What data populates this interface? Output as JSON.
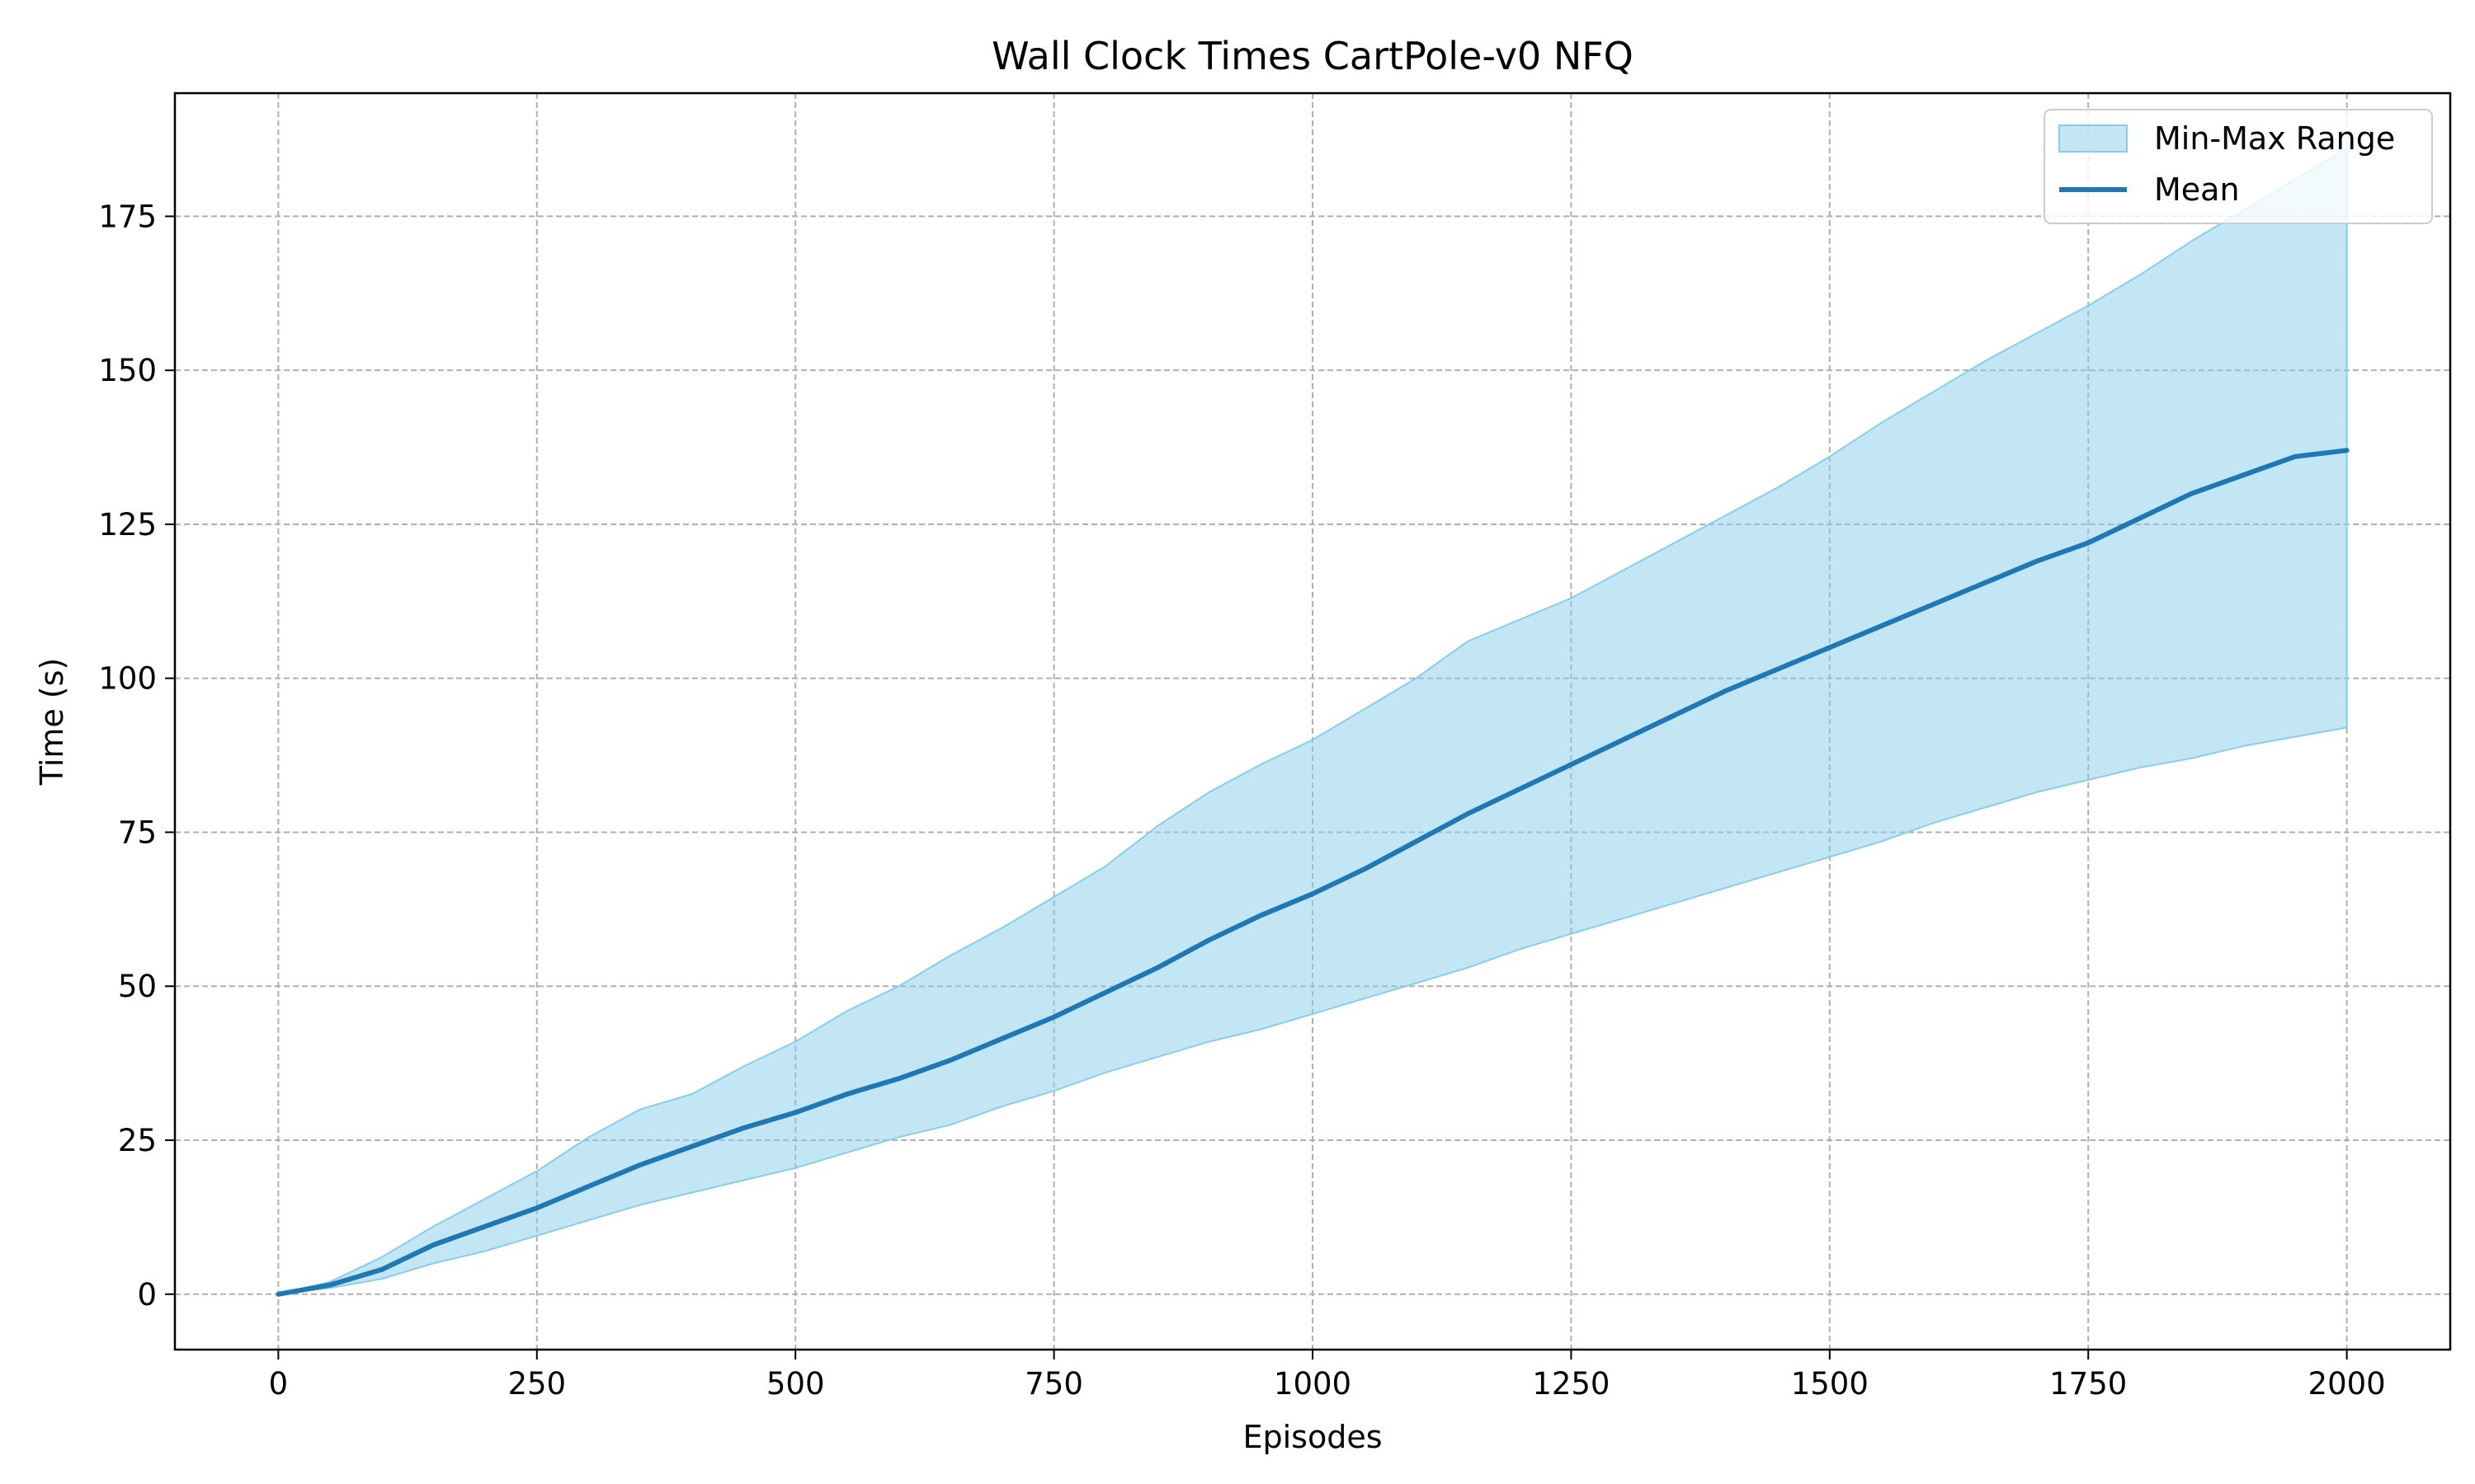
{
  "chart_data": {
    "type": "area",
    "title": "Wall Clock Times CartPole-v0 NFQ",
    "xlabel": "Episodes",
    "ylabel": "Time (s)",
    "xlim": [
      -100,
      2100
    ],
    "ylim": [
      -9,
      195
    ],
    "xticks": [
      0,
      250,
      500,
      750,
      1000,
      1250,
      1500,
      1750,
      2000
    ],
    "yticks": [
      0,
      25,
      50,
      75,
      100,
      125,
      150,
      175
    ],
    "grid": true,
    "legend_position": "top-right",
    "colors": {
      "range": "#87ceeb",
      "mean": "#1f77b4"
    },
    "x": [
      0,
      50,
      100,
      150,
      200,
      250,
      300,
      350,
      400,
      450,
      500,
      550,
      600,
      650,
      700,
      750,
      800,
      850,
      900,
      950,
      1000,
      1050,
      1100,
      1150,
      1200,
      1250,
      1300,
      1350,
      1400,
      1450,
      1500,
      1550,
      1600,
      1650,
      1700,
      1750,
      1800,
      1850,
      1900,
      1950,
      2000
    ],
    "series": [
      {
        "name": "Mean",
        "values": [
          0,
          1.5,
          4,
          8,
          11,
          14,
          17.5,
          21,
          24,
          27,
          29.5,
          32.5,
          35,
          38,
          41.5,
          45,
          49,
          53,
          57.5,
          61.5,
          65,
          69,
          73.5,
          78,
          82,
          86,
          90,
          94,
          98,
          101.5,
          105,
          108.5,
          112,
          115.5,
          119,
          122,
          126,
          130,
          133,
          136,
          137
        ]
      },
      {
        "name": "Min-Max Range",
        "min": [
          0,
          1,
          2.5,
          5,
          7,
          9.5,
          12,
          14.5,
          16.5,
          18.5,
          20.5,
          23,
          25.5,
          27.5,
          30.5,
          33,
          36,
          38.5,
          41,
          43,
          45.5,
          48,
          50.5,
          53,
          56,
          58.5,
          61,
          63.5,
          66,
          68.5,
          71,
          73.5,
          76.5,
          79,
          81.5,
          83.5,
          85.5,
          87,
          89,
          90.5,
          92
        ],
        "max": [
          0,
          2,
          6,
          11,
          15.5,
          20,
          25.5,
          30,
          32.5,
          37,
          41,
          46,
          50,
          55,
          59.5,
          64.5,
          69.5,
          76,
          81.5,
          86,
          90,
          95,
          100,
          106,
          109.5,
          113,
          117.5,
          122,
          126.5,
          131,
          136,
          141.5,
          146.5,
          151.5,
          156,
          160.5,
          165.5,
          171,
          176,
          181,
          186
        ]
      }
    ]
  }
}
